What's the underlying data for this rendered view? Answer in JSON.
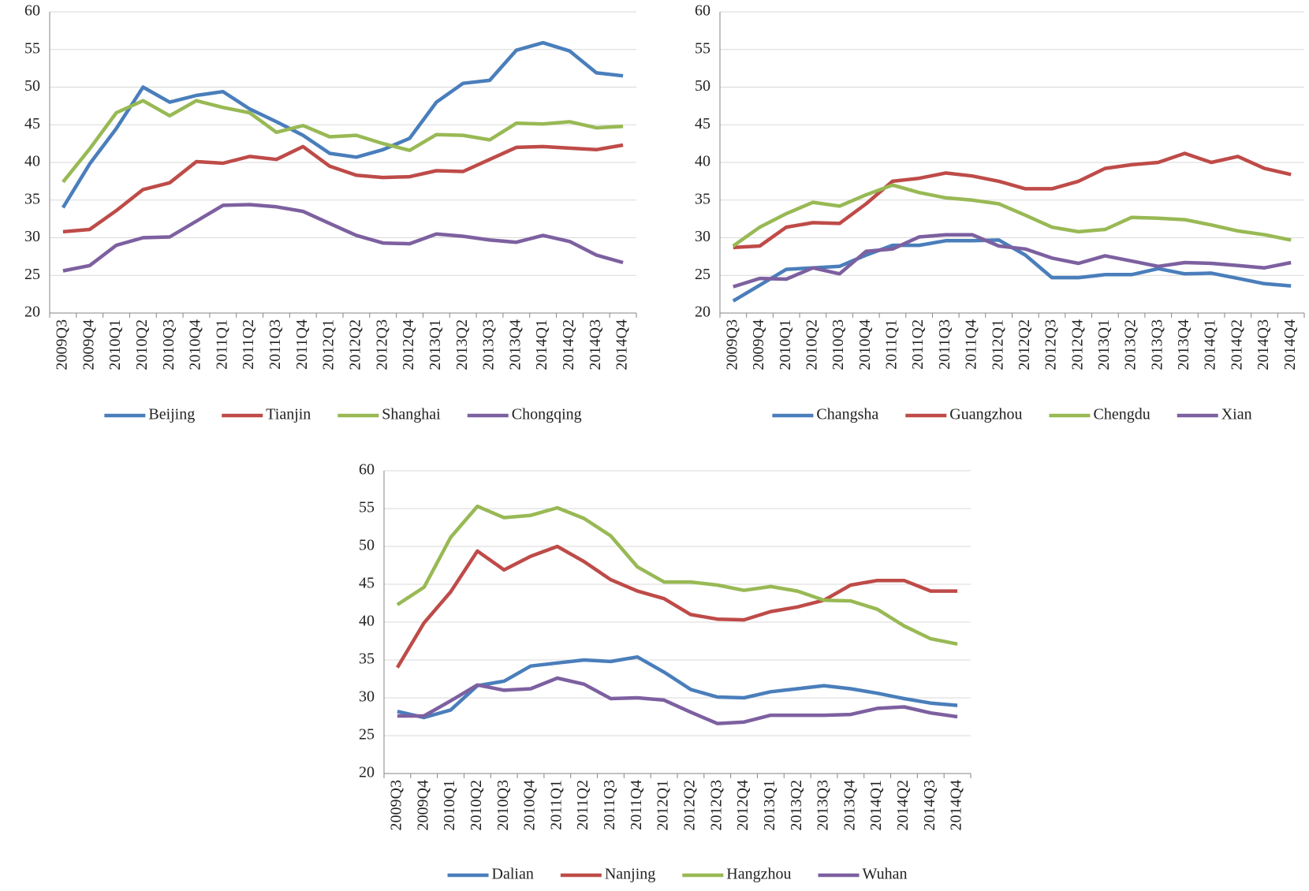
{
  "chart_data": [
    {
      "type": "line",
      "categories": [
        "2009Q3",
        "2009Q4",
        "2010Q1",
        "2010Q2",
        "2010Q3",
        "2010Q4",
        "2011Q1",
        "2011Q2",
        "2011Q3",
        "2011Q4",
        "2012Q1",
        "2012Q2",
        "2012Q3",
        "2012Q4",
        "2013Q1",
        "2013Q2",
        "2013Q3",
        "2013Q4",
        "2014Q1",
        "2014Q2",
        "2014Q3",
        "2014Q4"
      ],
      "series": [
        {
          "name": "Beijing",
          "color": "#4a7ebb",
          "values": [
            34.0,
            39.8,
            44.5,
            50.0,
            48.0,
            48.9,
            49.4,
            47.1,
            45.4,
            43.6,
            41.2,
            40.7,
            41.7,
            43.2,
            48.0,
            50.5,
            50.9,
            54.9,
            55.9,
            54.8,
            51.9,
            51.5
          ]
        },
        {
          "name": "Tianjin",
          "color": "#be4b48",
          "values": [
            30.8,
            31.1,
            33.6,
            36.4,
            37.3,
            40.1,
            39.9,
            40.8,
            40.4,
            42.1,
            39.5,
            38.3,
            38.0,
            38.1,
            38.9,
            38.8,
            40.4,
            42.0,
            42.1,
            41.9,
            41.7,
            42.3
          ]
        },
        {
          "name": "Shanghai",
          "color": "#98b954",
          "values": [
            37.4,
            41.8,
            46.6,
            48.2,
            46.2,
            48.2,
            47.3,
            46.6,
            44.0,
            44.9,
            43.4,
            43.6,
            42.5,
            41.6,
            43.7,
            43.6,
            43.0,
            45.2,
            45.1,
            45.4,
            44.6,
            44.8
          ]
        },
        {
          "name": "Chongqing",
          "color": "#7d60a0",
          "values": [
            25.6,
            26.3,
            29.0,
            30.0,
            30.1,
            32.2,
            34.3,
            34.4,
            34.1,
            33.5,
            31.9,
            30.3,
            29.3,
            29.2,
            30.5,
            30.2,
            29.7,
            29.4,
            30.3,
            29.5,
            27.7,
            26.7
          ]
        }
      ],
      "ylim": [
        20,
        60
      ],
      "yticks": [
        20,
        25,
        30,
        35,
        40,
        45,
        50,
        55,
        60
      ],
      "grid": true,
      "legend": "bottom"
    },
    {
      "type": "line",
      "categories": [
        "2009Q3",
        "2009Q4",
        "2010Q1",
        "2010Q2",
        "2010Q3",
        "2010Q4",
        "2011Q1",
        "2011Q2",
        "2011Q3",
        "2011Q4",
        "2012Q1",
        "2012Q2",
        "2012Q3",
        "2012Q4",
        "2013Q1",
        "2013Q2",
        "2013Q3",
        "2013Q4",
        "2014Q1",
        "2014Q2",
        "2014Q3",
        "2014Q4"
      ],
      "series": [
        {
          "name": "Changsha",
          "color": "#4a7ebb",
          "values": [
            21.6,
            23.7,
            25.8,
            26.0,
            26.2,
            27.7,
            29.0,
            29.0,
            29.6,
            29.6,
            29.7,
            27.7,
            24.7,
            24.7,
            25.1,
            25.1,
            25.9,
            25.2,
            25.3,
            24.6,
            23.9,
            23.6
          ]
        },
        {
          "name": "Guangzhou",
          "color": "#be4b48",
          "values": [
            28.7,
            28.9,
            31.4,
            32.0,
            31.9,
            34.5,
            37.5,
            37.9,
            38.6,
            38.2,
            37.5,
            36.5,
            36.5,
            37.5,
            39.2,
            39.7,
            40.0,
            41.2,
            40.0,
            40.8,
            39.2,
            38.4
          ]
        },
        {
          "name": "Chengdu",
          "color": "#98b954",
          "values": [
            28.9,
            31.4,
            33.2,
            34.7,
            34.2,
            35.7,
            37.0,
            36.0,
            35.3,
            35.0,
            34.5,
            33.0,
            31.4,
            30.8,
            31.1,
            32.7,
            32.6,
            32.4,
            31.7,
            30.9,
            30.4,
            29.7
          ]
        },
        {
          "name": "Xian",
          "color": "#7d60a0",
          "values": [
            23.5,
            24.6,
            24.5,
            26.0,
            25.2,
            28.2,
            28.5,
            30.1,
            30.4,
            30.4,
            28.9,
            28.5,
            27.3,
            26.6,
            27.6,
            26.9,
            26.2,
            26.7,
            26.6,
            26.3,
            26.0,
            26.7
          ]
        }
      ],
      "ylim": [
        20,
        60
      ],
      "yticks": [
        20,
        25,
        30,
        35,
        40,
        45,
        50,
        55,
        60
      ],
      "grid": true,
      "legend": "bottom"
    },
    {
      "type": "line",
      "categories": [
        "2009Q3",
        "2009Q4",
        "2010Q1",
        "2010Q2",
        "2010Q3",
        "2010Q4",
        "2011Q1",
        "2011Q2",
        "2011Q3",
        "2011Q4",
        "2012Q1",
        "2012Q2",
        "2012Q3",
        "2012Q4",
        "2013Q1",
        "2013Q2",
        "2013Q3",
        "2013Q4",
        "2014Q1",
        "2014Q2",
        "2014Q3",
        "2014Q4"
      ],
      "series": [
        {
          "name": "Dalian",
          "color": "#4a7ebb",
          "values": [
            28.2,
            27.4,
            28.4,
            31.6,
            32.2,
            34.2,
            34.6,
            35.0,
            34.8,
            35.4,
            33.4,
            31.1,
            30.1,
            30.0,
            30.8,
            31.2,
            31.6,
            31.2,
            30.6,
            29.9,
            29.3,
            29.0
          ]
        },
        {
          "name": "Nanjing",
          "color": "#be4b48",
          "values": [
            34.0,
            39.9,
            44.0,
            49.4,
            46.9,
            48.7,
            50.0,
            48.0,
            45.6,
            44.1,
            43.1,
            41.0,
            40.4,
            40.3,
            41.4,
            42.0,
            42.9,
            44.9,
            45.5,
            45.5,
            44.1,
            44.1
          ]
        },
        {
          "name": "Hangzhou",
          "color": "#98b954",
          "values": [
            42.3,
            44.6,
            51.2,
            55.3,
            53.8,
            54.1,
            55.1,
            53.7,
            51.4,
            47.3,
            45.3,
            45.3,
            44.9,
            44.2,
            44.7,
            44.1,
            42.9,
            42.8,
            41.7,
            39.5,
            37.8,
            37.1
          ]
        },
        {
          "name": "Wuhan",
          "color": "#7d60a0",
          "values": [
            27.6,
            27.6,
            29.6,
            31.7,
            31.0,
            31.2,
            32.6,
            31.8,
            29.9,
            30.0,
            29.7,
            28.1,
            26.6,
            26.8,
            27.7,
            27.7,
            27.7,
            27.8,
            28.6,
            28.8,
            28.0,
            27.5
          ]
        }
      ],
      "ylim": [
        20,
        60
      ],
      "yticks": [
        20,
        25,
        30,
        35,
        40,
        45,
        50,
        55,
        60
      ],
      "grid": true,
      "legend": "bottom"
    }
  ]
}
